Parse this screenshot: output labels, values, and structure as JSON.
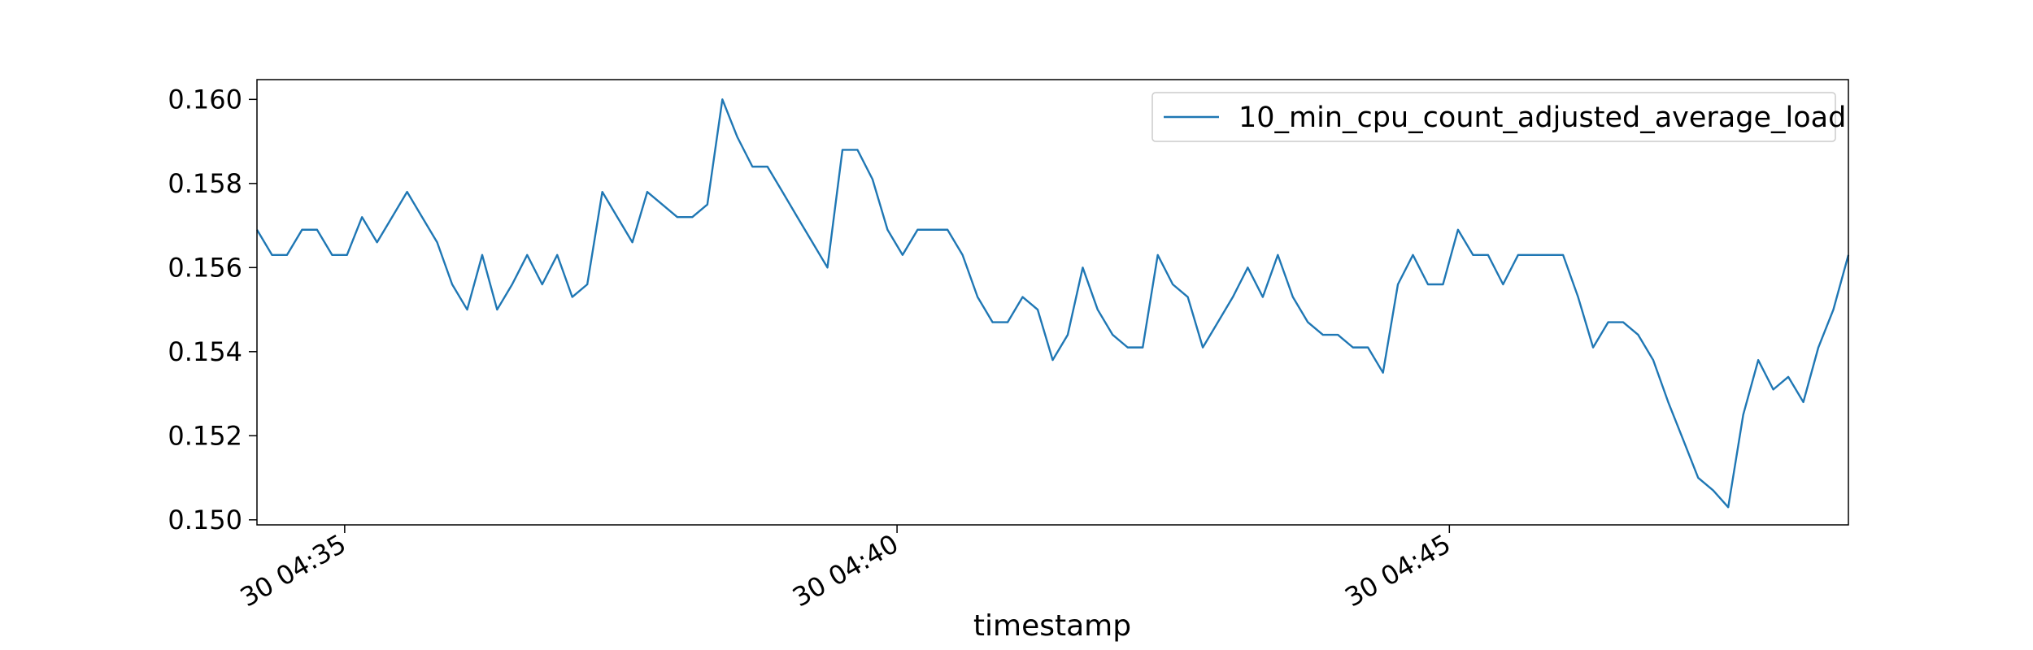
{
  "chart_data": {
    "type": "line",
    "x_label": "timestamp",
    "series": [
      {
        "name": "10_min_cpu_count_adjusted_average_load",
        "color": "#1f77b4",
        "x": [
          34.206,
          34.342,
          34.478,
          34.614,
          34.75,
          34.886,
          35.021,
          35.157,
          35.293,
          35.429,
          35.565,
          35.701,
          35.837,
          35.973,
          36.109,
          36.245,
          36.38,
          36.516,
          36.652,
          36.788,
          36.924,
          37.06,
          37.196,
          37.332,
          37.468,
          37.604,
          37.739,
          37.875,
          38.011,
          38.147,
          38.283,
          38.419,
          38.555,
          38.691,
          38.827,
          38.963,
          39.098,
          39.234,
          39.37,
          39.506,
          39.642,
          39.778,
          39.914,
          40.05,
          40.186,
          40.322,
          40.457,
          40.593,
          40.729,
          40.865,
          41.001,
          41.137,
          41.273,
          41.409,
          41.545,
          41.681,
          41.816,
          41.952,
          42.088,
          42.224,
          42.36,
          42.496,
          42.632,
          42.768,
          42.904,
          43.04,
          43.175,
          43.311,
          43.447,
          43.583,
          43.719,
          43.855,
          43.991,
          44.127,
          44.263,
          44.399,
          44.534,
          44.67,
          44.806,
          44.942,
          45.078,
          45.214,
          45.35,
          45.486,
          45.622,
          45.758,
          45.893,
          46.029,
          46.165,
          46.301,
          46.437,
          46.573,
          46.709,
          46.845,
          46.981,
          47.117,
          47.252,
          47.388,
          47.524,
          47.66,
          47.796,
          47.932,
          48.068,
          48.204,
          48.34,
          48.476,
          48.612
        ],
        "values": [
          0.1569,
          0.1563,
          0.1563,
          0.1569,
          0.1569,
          0.1563,
          0.1563,
          0.1572,
          0.1566,
          0.1572,
          0.1578,
          0.1572,
          0.1566,
          0.1556,
          0.155,
          0.1563,
          0.155,
          0.1556,
          0.1563,
          0.1556,
          0.1563,
          0.1553,
          0.1556,
          0.1578,
          0.1572,
          0.1566,
          0.1578,
          0.1575,
          0.1572,
          0.1572,
          0.1575,
          0.16,
          0.1591,
          0.1584,
          0.1584,
          0.1578,
          0.1572,
          0.1566,
          0.156,
          0.1588,
          0.1588,
          0.1581,
          0.1569,
          0.1563,
          0.1569,
          0.1569,
          0.1569,
          0.1563,
          0.1553,
          0.1547,
          0.1547,
          0.1553,
          0.155,
          0.1538,
          0.1544,
          0.156,
          0.155,
          0.1544,
          0.1541,
          0.1541,
          0.1563,
          0.1556,
          0.1553,
          0.1541,
          0.1547,
          0.1553,
          0.156,
          0.1553,
          0.1563,
          0.1553,
          0.1547,
          0.1544,
          0.1544,
          0.1541,
          0.1541,
          0.1535,
          0.1556,
          0.1563,
          0.1556,
          0.1556,
          0.1569,
          0.1563,
          0.1563,
          0.1556,
          0.1563,
          0.1563,
          0.1563,
          0.1563,
          0.1553,
          0.1541,
          0.1547,
          0.1547,
          0.1544,
          0.1538,
          0.1528,
          0.1519,
          0.151,
          0.1507,
          0.1503,
          0.1525,
          0.1538,
          0.1531,
          0.1534,
          0.1528,
          0.1541,
          0.155,
          0.1563
        ]
      }
    ],
    "xlim": [
      34.206,
      48.612
    ],
    "xticks": [
      {
        "value": 35,
        "label": "30 04:35"
      },
      {
        "value": 40,
        "label": "30 04:40"
      },
      {
        "value": 45,
        "label": "30 04:45"
      }
    ],
    "ylim": [
      0.14988,
      0.16047
    ],
    "yticks": [
      {
        "value": 0.15,
        "label": "0.150"
      },
      {
        "value": 0.152,
        "label": "0.152"
      },
      {
        "value": 0.154,
        "label": "0.154"
      },
      {
        "value": 0.156,
        "label": "0.156"
      },
      {
        "value": 0.158,
        "label": "0.158"
      },
      {
        "value": 0.16,
        "label": "0.160"
      }
    ],
    "grid": false,
    "legend": "upper right"
  }
}
